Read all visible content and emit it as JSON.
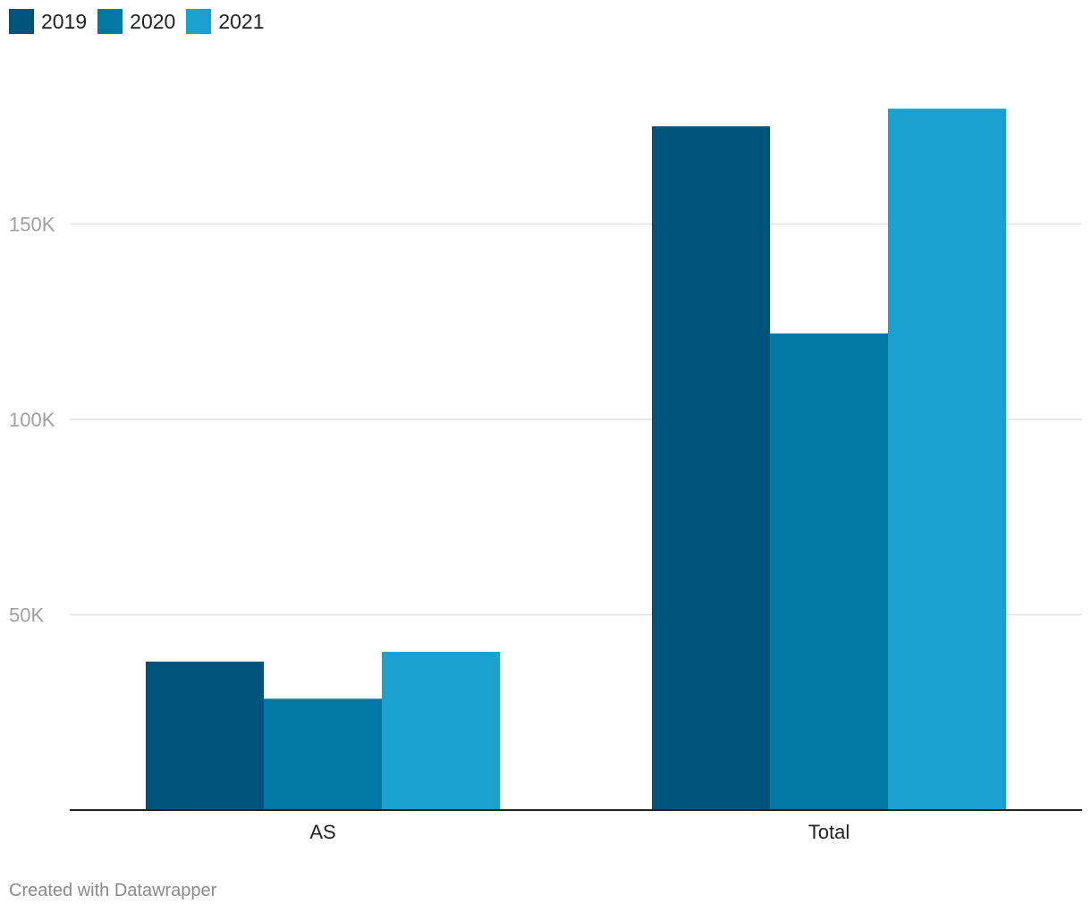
{
  "chart_data": {
    "type": "bar",
    "categories": [
      "AS",
      "Total"
    ],
    "series": [
      {
        "name": "2019",
        "color": "#00547c",
        "values": [
          38000,
          175000
        ]
      },
      {
        "name": "2020",
        "color": "#0077a4",
        "values": [
          28500,
          122000
        ]
      },
      {
        "name": "2021",
        "color": "#1aa1cf",
        "values": [
          40500,
          179500
        ]
      }
    ],
    "yticks": [
      {
        "value": 50000,
        "label": "50K"
      },
      {
        "value": 100000,
        "label": "100K"
      },
      {
        "value": 150000,
        "label": "150K"
      }
    ],
    "ylim": [
      0,
      200000
    ],
    "grid": true,
    "legend_position": "top-left"
  },
  "footer": {
    "credit": "Created with Datawrapper"
  }
}
